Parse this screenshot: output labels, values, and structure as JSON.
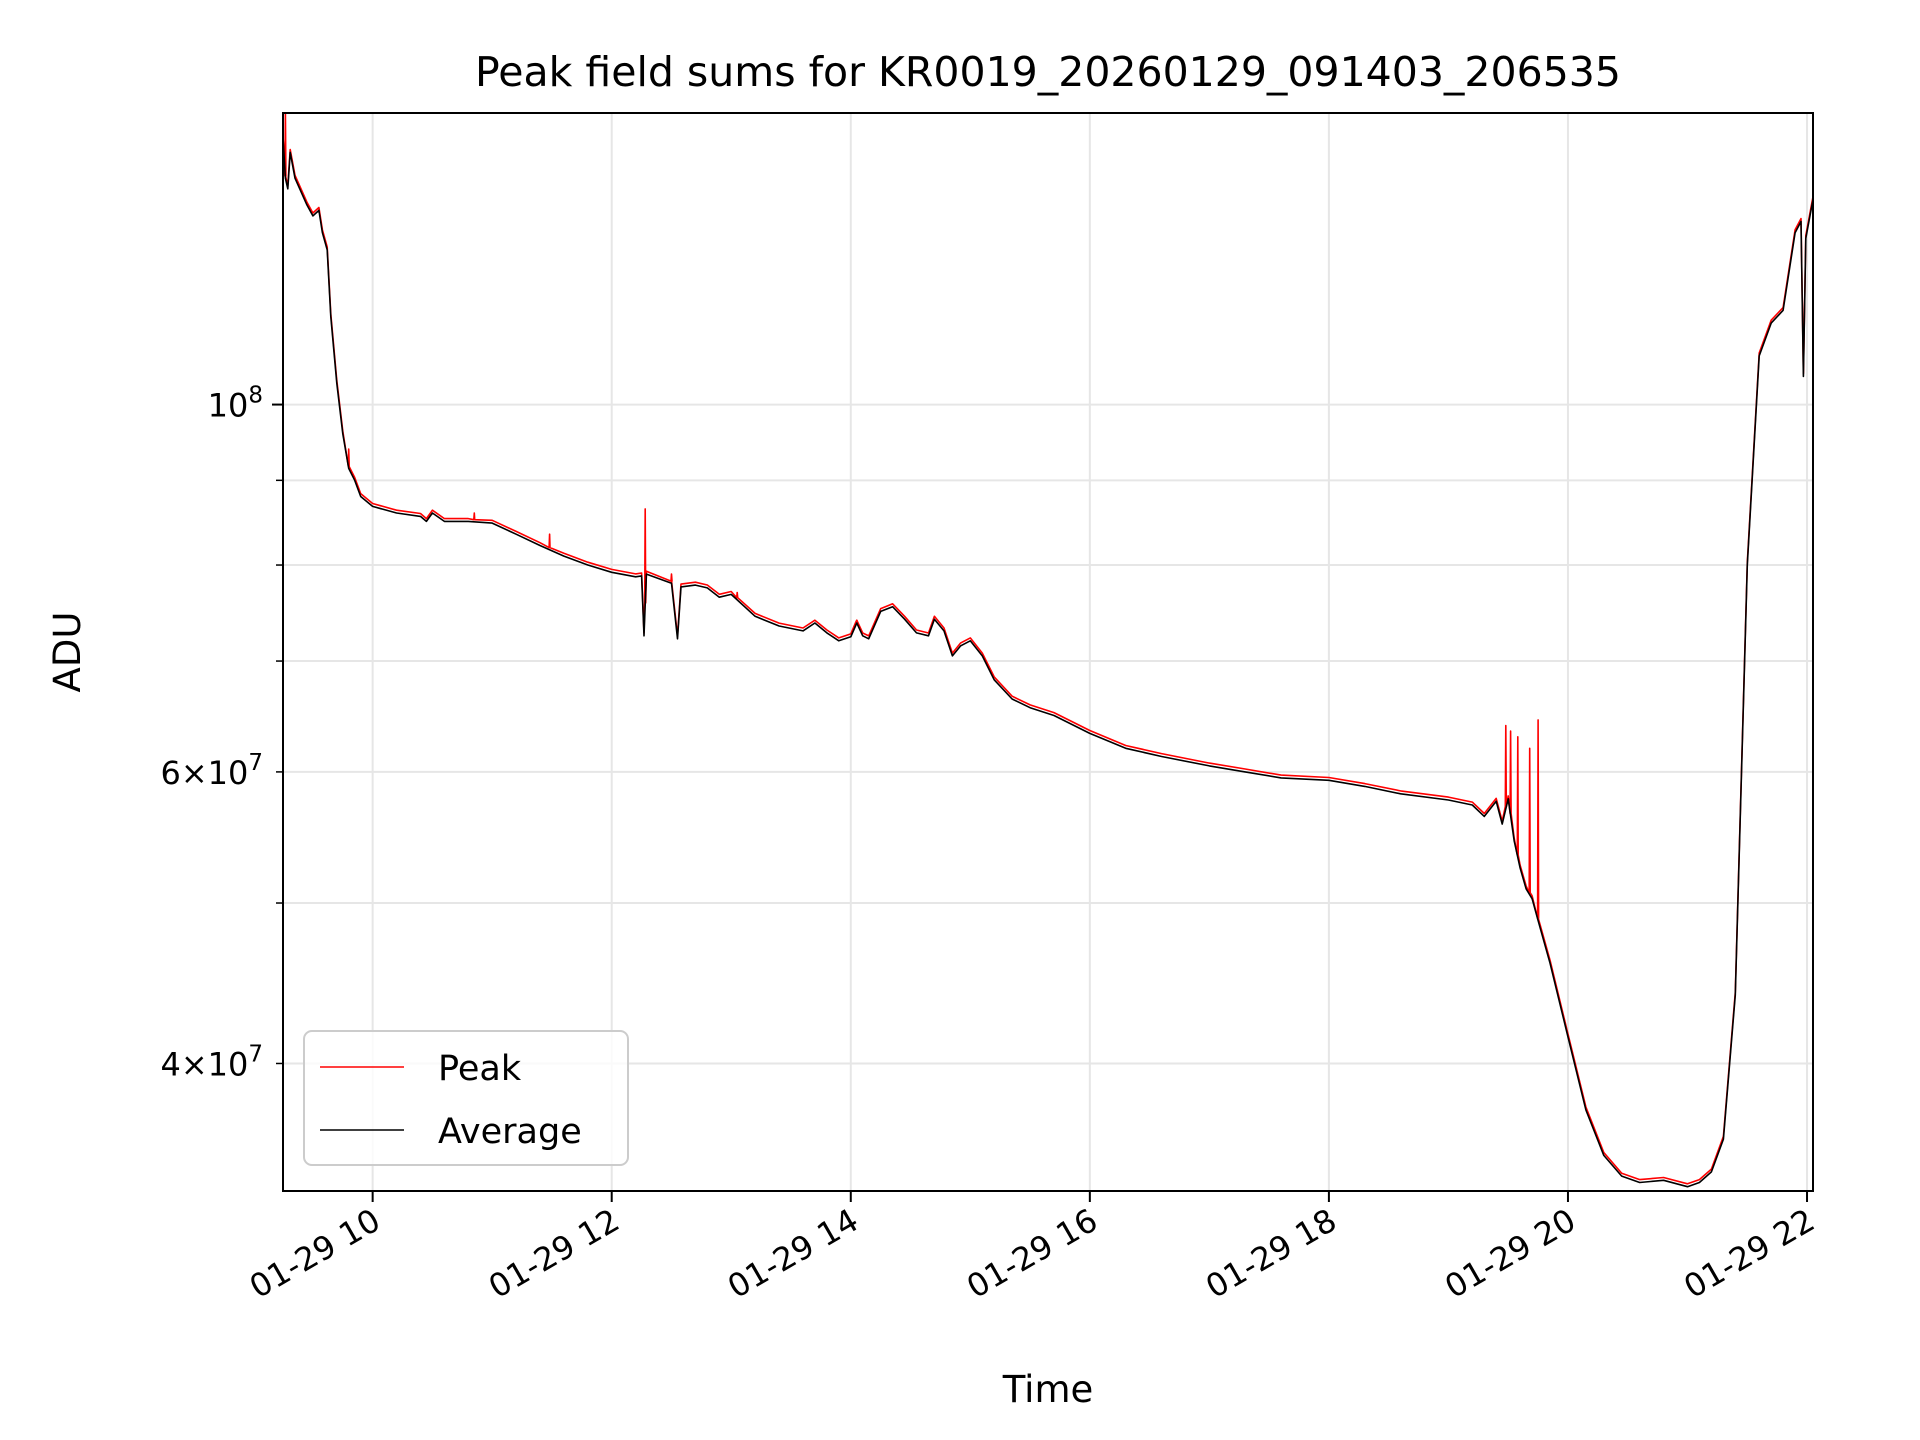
{
  "chart_data": {
    "type": "line",
    "title": "Peak field sums for KR0019_20260129_091403_206535",
    "xlabel": "Time",
    "ylabel": "ADU",
    "yscale": "log",
    "xlim_hours": [
      9.25,
      22.05
    ],
    "ylim": [
      33500000,
      150000000
    ],
    "grid": true,
    "legend_position": "lower-left",
    "x_ticks": [
      {
        "hour": 10,
        "label": "01-29 10"
      },
      {
        "hour": 12,
        "label": "01-29 12"
      },
      {
        "hour": 14,
        "label": "01-29 14"
      },
      {
        "hour": 16,
        "label": "01-29 16"
      },
      {
        "hour": 18,
        "label": "01-29 18"
      },
      {
        "hour": 20,
        "label": "01-29 20"
      },
      {
        "hour": 22,
        "label": "01-29 22"
      }
    ],
    "y_major_ticks": [
      {
        "value": 100000000,
        "base": "10",
        "exp": "8"
      }
    ],
    "y_minor_ticks": [
      {
        "value": 40000000,
        "coef": "4",
        "base": "10",
        "exp": "7"
      },
      {
        "value": 50000000,
        "coef": "",
        "base": "",
        "exp": ""
      },
      {
        "value": 60000000,
        "coef": "6",
        "base": "10",
        "exp": "7"
      },
      {
        "value": 70000000,
        "coef": "",
        "base": "",
        "exp": ""
      },
      {
        "value": 80000000,
        "coef": "",
        "base": "",
        "exp": ""
      },
      {
        "value": 90000000,
        "coef": "",
        "base": "",
        "exp": ""
      }
    ],
    "times_symbol": "×",
    "series": [
      {
        "name": "Peak",
        "color": "#ff0000",
        "spikes": [
          [
            9.27,
            150000000
          ],
          [
            9.8,
            94000000
          ],
          [
            10.85,
            86000000
          ],
          [
            11.48,
            83500000
          ],
          [
            12.28,
            86500000
          ],
          [
            12.5,
            79000000
          ],
          [
            13.05,
            77000000
          ],
          [
            14.05,
            74000000
          ],
          [
            19.48,
            64000000
          ],
          [
            19.52,
            63500000
          ],
          [
            19.58,
            63000000
          ],
          [
            19.68,
            62000000
          ],
          [
            19.75,
            64500000
          ]
        ]
      },
      {
        "name": "Average",
        "color": "#000000",
        "points": [
          [
            9.25,
            145000000
          ],
          [
            9.27,
            137000000
          ],
          [
            9.29,
            135000000
          ],
          [
            9.31,
            142000000
          ],
          [
            9.35,
            137000000
          ],
          [
            9.45,
            132000000
          ],
          [
            9.5,
            130000000
          ],
          [
            9.55,
            131000000
          ],
          [
            9.58,
            127000000
          ],
          [
            9.62,
            124000000
          ],
          [
            9.65,
            113000000
          ],
          [
            9.7,
            103000000
          ],
          [
            9.75,
            96000000
          ],
          [
            9.8,
            91500000
          ],
          [
            9.85,
            90000000
          ],
          [
            9.9,
            88000000
          ],
          [
            10.0,
            86800000
          ],
          [
            10.2,
            86000000
          ],
          [
            10.4,
            85600000
          ],
          [
            10.45,
            85000000
          ],
          [
            10.5,
            86000000
          ],
          [
            10.6,
            85000000
          ],
          [
            10.8,
            85000000
          ],
          [
            11.0,
            84800000
          ],
          [
            11.2,
            83500000
          ],
          [
            11.4,
            82200000
          ],
          [
            11.6,
            81000000
          ],
          [
            11.8,
            80000000
          ],
          [
            12.0,
            79200000
          ],
          [
            12.2,
            78700000
          ],
          [
            12.25,
            78800000
          ],
          [
            12.27,
            72500000
          ],
          [
            12.29,
            79000000
          ],
          [
            12.5,
            78000000
          ],
          [
            12.55,
            72200000
          ],
          [
            12.58,
            77600000
          ],
          [
            12.7,
            77800000
          ],
          [
            12.8,
            77500000
          ],
          [
            12.9,
            76500000
          ],
          [
            13.0,
            76800000
          ],
          [
            13.2,
            74500000
          ],
          [
            13.4,
            73500000
          ],
          [
            13.6,
            73000000
          ],
          [
            13.7,
            73800000
          ],
          [
            13.8,
            72800000
          ],
          [
            13.9,
            72000000
          ],
          [
            14.0,
            72400000
          ],
          [
            14.05,
            73800000
          ],
          [
            14.1,
            72500000
          ],
          [
            14.15,
            72200000
          ],
          [
            14.25,
            75000000
          ],
          [
            14.35,
            75500000
          ],
          [
            14.45,
            74200000
          ],
          [
            14.55,
            72800000
          ],
          [
            14.65,
            72500000
          ],
          [
            14.7,
            74200000
          ],
          [
            14.78,
            73000000
          ],
          [
            14.85,
            70500000
          ],
          [
            14.92,
            71500000
          ],
          [
            15.0,
            72000000
          ],
          [
            15.1,
            70500000
          ],
          [
            15.2,
            68200000
          ],
          [
            15.35,
            66400000
          ],
          [
            15.5,
            65600000
          ],
          [
            15.7,
            64900000
          ],
          [
            16.0,
            63300000
          ],
          [
            16.3,
            62000000
          ],
          [
            16.6,
            61300000
          ],
          [
            17.0,
            60500000
          ],
          [
            17.3,
            60000000
          ],
          [
            17.6,
            59500000
          ],
          [
            18.0,
            59300000
          ],
          [
            18.3,
            58800000
          ],
          [
            18.6,
            58200000
          ],
          [
            19.0,
            57700000
          ],
          [
            19.2,
            57300000
          ],
          [
            19.3,
            56400000
          ],
          [
            19.4,
            57600000
          ],
          [
            19.45,
            55800000
          ],
          [
            19.5,
            57800000
          ],
          [
            19.55,
            54500000
          ],
          [
            19.6,
            52500000
          ],
          [
            19.65,
            51000000
          ],
          [
            19.7,
            50300000
          ],
          [
            19.75,
            48800000
          ],
          [
            19.85,
            46000000
          ],
          [
            20.0,
            41500000
          ],
          [
            20.15,
            37500000
          ],
          [
            20.3,
            35200000
          ],
          [
            20.45,
            34200000
          ],
          [
            20.6,
            33900000
          ],
          [
            20.8,
            34000000
          ],
          [
            21.0,
            33700000
          ],
          [
            21.1,
            33900000
          ],
          [
            21.2,
            34400000
          ],
          [
            21.3,
            36000000
          ],
          [
            21.4,
            44000000
          ],
          [
            21.5,
            80000000
          ],
          [
            21.6,
            107000000
          ],
          [
            21.7,
            112000000
          ],
          [
            21.8,
            114000000
          ],
          [
            21.9,
            127000000
          ],
          [
            21.95,
            129000000
          ],
          [
            21.97,
            104000000
          ],
          [
            21.99,
            126000000
          ],
          [
            22.05,
            133000000
          ]
        ]
      }
    ]
  }
}
